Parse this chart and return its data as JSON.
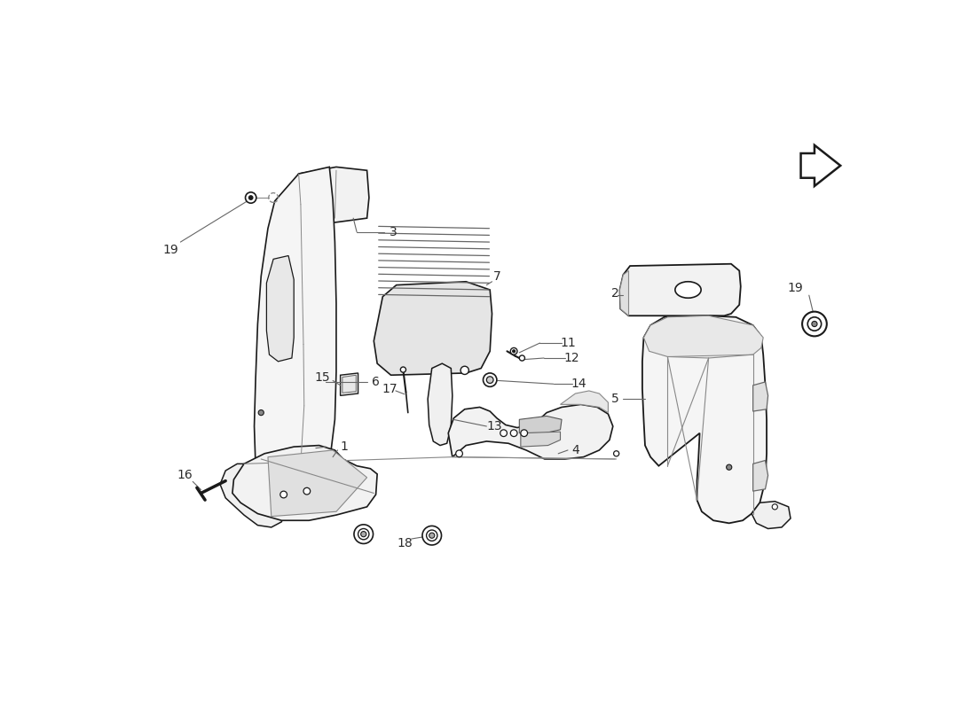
{
  "background_color": "#ffffff",
  "line_color": "#1a1a1a",
  "label_color": "#2a2a2a",
  "leader_color": "#666666",
  "fig_width": 11.0,
  "fig_height": 8.0,
  "dpi": 100
}
